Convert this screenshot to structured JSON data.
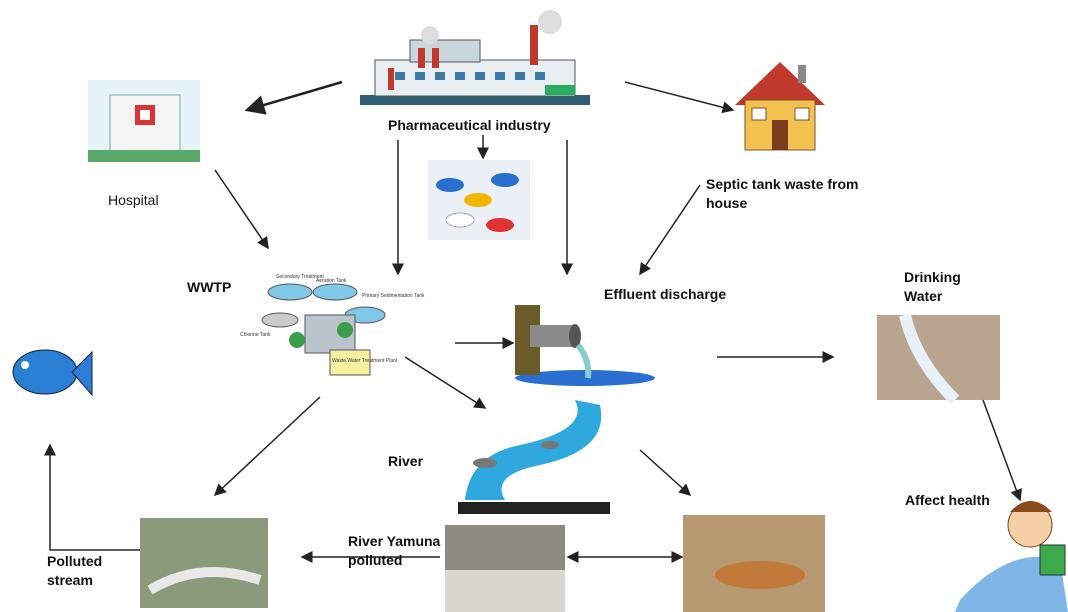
{
  "nodes": {
    "pharmaceutical_industry": "Pharmaceutical industry",
    "hospital": "Hospital",
    "septic_tank": "Septic tank waste from house",
    "wwtp": "WWTP",
    "effluent_discharge": "Effluent discharge",
    "drinking_water": "Drinking Water",
    "river": "River",
    "affect_health": "Affect health",
    "polluted_stream": "Polluted stream",
    "river_yamuna": "River Yamuna polluted"
  },
  "wwtp_diagram": {
    "secondary": "Secondary Treatment",
    "aeration": "Aeration Tank",
    "primary": "Primary Sedimentation Tank",
    "chlorine": "Chlorine Tank",
    "plant": "Waste Water Treatment Plant"
  }
}
